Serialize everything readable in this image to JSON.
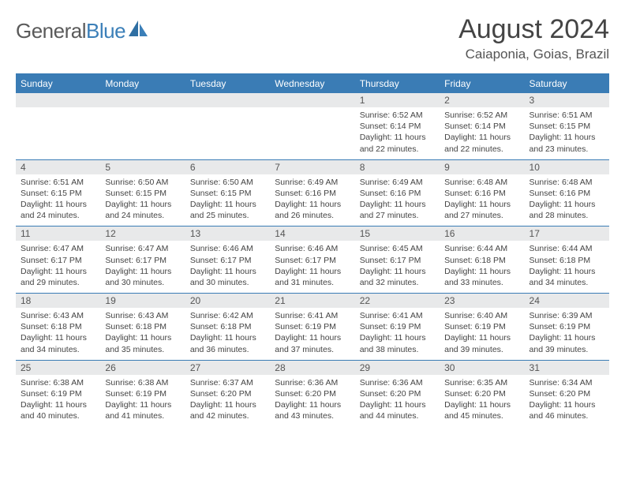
{
  "logo": {
    "word1": "General",
    "word2": "Blue"
  },
  "title": "August 2024",
  "location": "Caiaponia, Goias, Brazil",
  "colors": {
    "header_bg": "#3a7cb5",
    "header_text": "#ffffff",
    "daynum_bg": "#e8e9ea",
    "row_divider": "#3a7cb5",
    "body_text": "#444444",
    "logo_gray": "#5a5a5a",
    "logo_blue": "#3b7fb8"
  },
  "days_of_week": [
    "Sunday",
    "Monday",
    "Tuesday",
    "Wednesday",
    "Thursday",
    "Friday",
    "Saturday"
  ],
  "weeks": [
    [
      null,
      null,
      null,
      null,
      {
        "n": "1",
        "sr": "6:52 AM",
        "ss": "6:14 PM",
        "d1": "Daylight: 11 hours",
        "d2": "and 22 minutes."
      },
      {
        "n": "2",
        "sr": "6:52 AM",
        "ss": "6:14 PM",
        "d1": "Daylight: 11 hours",
        "d2": "and 22 minutes."
      },
      {
        "n": "3",
        "sr": "6:51 AM",
        "ss": "6:15 PM",
        "d1": "Daylight: 11 hours",
        "d2": "and 23 minutes."
      }
    ],
    [
      {
        "n": "4",
        "sr": "6:51 AM",
        "ss": "6:15 PM",
        "d1": "Daylight: 11 hours",
        "d2": "and 24 minutes."
      },
      {
        "n": "5",
        "sr": "6:50 AM",
        "ss": "6:15 PM",
        "d1": "Daylight: 11 hours",
        "d2": "and 24 minutes."
      },
      {
        "n": "6",
        "sr": "6:50 AM",
        "ss": "6:15 PM",
        "d1": "Daylight: 11 hours",
        "d2": "and 25 minutes."
      },
      {
        "n": "7",
        "sr": "6:49 AM",
        "ss": "6:16 PM",
        "d1": "Daylight: 11 hours",
        "d2": "and 26 minutes."
      },
      {
        "n": "8",
        "sr": "6:49 AM",
        "ss": "6:16 PM",
        "d1": "Daylight: 11 hours",
        "d2": "and 27 minutes."
      },
      {
        "n": "9",
        "sr": "6:48 AM",
        "ss": "6:16 PM",
        "d1": "Daylight: 11 hours",
        "d2": "and 27 minutes."
      },
      {
        "n": "10",
        "sr": "6:48 AM",
        "ss": "6:16 PM",
        "d1": "Daylight: 11 hours",
        "d2": "and 28 minutes."
      }
    ],
    [
      {
        "n": "11",
        "sr": "6:47 AM",
        "ss": "6:17 PM",
        "d1": "Daylight: 11 hours",
        "d2": "and 29 minutes."
      },
      {
        "n": "12",
        "sr": "6:47 AM",
        "ss": "6:17 PM",
        "d1": "Daylight: 11 hours",
        "d2": "and 30 minutes."
      },
      {
        "n": "13",
        "sr": "6:46 AM",
        "ss": "6:17 PM",
        "d1": "Daylight: 11 hours",
        "d2": "and 30 minutes."
      },
      {
        "n": "14",
        "sr": "6:46 AM",
        "ss": "6:17 PM",
        "d1": "Daylight: 11 hours",
        "d2": "and 31 minutes."
      },
      {
        "n": "15",
        "sr": "6:45 AM",
        "ss": "6:17 PM",
        "d1": "Daylight: 11 hours",
        "d2": "and 32 minutes."
      },
      {
        "n": "16",
        "sr": "6:44 AM",
        "ss": "6:18 PM",
        "d1": "Daylight: 11 hours",
        "d2": "and 33 minutes."
      },
      {
        "n": "17",
        "sr": "6:44 AM",
        "ss": "6:18 PM",
        "d1": "Daylight: 11 hours",
        "d2": "and 34 minutes."
      }
    ],
    [
      {
        "n": "18",
        "sr": "6:43 AM",
        "ss": "6:18 PM",
        "d1": "Daylight: 11 hours",
        "d2": "and 34 minutes."
      },
      {
        "n": "19",
        "sr": "6:43 AM",
        "ss": "6:18 PM",
        "d1": "Daylight: 11 hours",
        "d2": "and 35 minutes."
      },
      {
        "n": "20",
        "sr": "6:42 AM",
        "ss": "6:18 PM",
        "d1": "Daylight: 11 hours",
        "d2": "and 36 minutes."
      },
      {
        "n": "21",
        "sr": "6:41 AM",
        "ss": "6:19 PM",
        "d1": "Daylight: 11 hours",
        "d2": "and 37 minutes."
      },
      {
        "n": "22",
        "sr": "6:41 AM",
        "ss": "6:19 PM",
        "d1": "Daylight: 11 hours",
        "d2": "and 38 minutes."
      },
      {
        "n": "23",
        "sr": "6:40 AM",
        "ss": "6:19 PM",
        "d1": "Daylight: 11 hours",
        "d2": "and 39 minutes."
      },
      {
        "n": "24",
        "sr": "6:39 AM",
        "ss": "6:19 PM",
        "d1": "Daylight: 11 hours",
        "d2": "and 39 minutes."
      }
    ],
    [
      {
        "n": "25",
        "sr": "6:38 AM",
        "ss": "6:19 PM",
        "d1": "Daylight: 11 hours",
        "d2": "and 40 minutes."
      },
      {
        "n": "26",
        "sr": "6:38 AM",
        "ss": "6:19 PM",
        "d1": "Daylight: 11 hours",
        "d2": "and 41 minutes."
      },
      {
        "n": "27",
        "sr": "6:37 AM",
        "ss": "6:20 PM",
        "d1": "Daylight: 11 hours",
        "d2": "and 42 minutes."
      },
      {
        "n": "28",
        "sr": "6:36 AM",
        "ss": "6:20 PM",
        "d1": "Daylight: 11 hours",
        "d2": "and 43 minutes."
      },
      {
        "n": "29",
        "sr": "6:36 AM",
        "ss": "6:20 PM",
        "d1": "Daylight: 11 hours",
        "d2": "and 44 minutes."
      },
      {
        "n": "30",
        "sr": "6:35 AM",
        "ss": "6:20 PM",
        "d1": "Daylight: 11 hours",
        "d2": "and 45 minutes."
      },
      {
        "n": "31",
        "sr": "6:34 AM",
        "ss": "6:20 PM",
        "d1": "Daylight: 11 hours",
        "d2": "and 46 minutes."
      }
    ]
  ],
  "labels": {
    "sunrise": "Sunrise: ",
    "sunset": "Sunset: "
  }
}
